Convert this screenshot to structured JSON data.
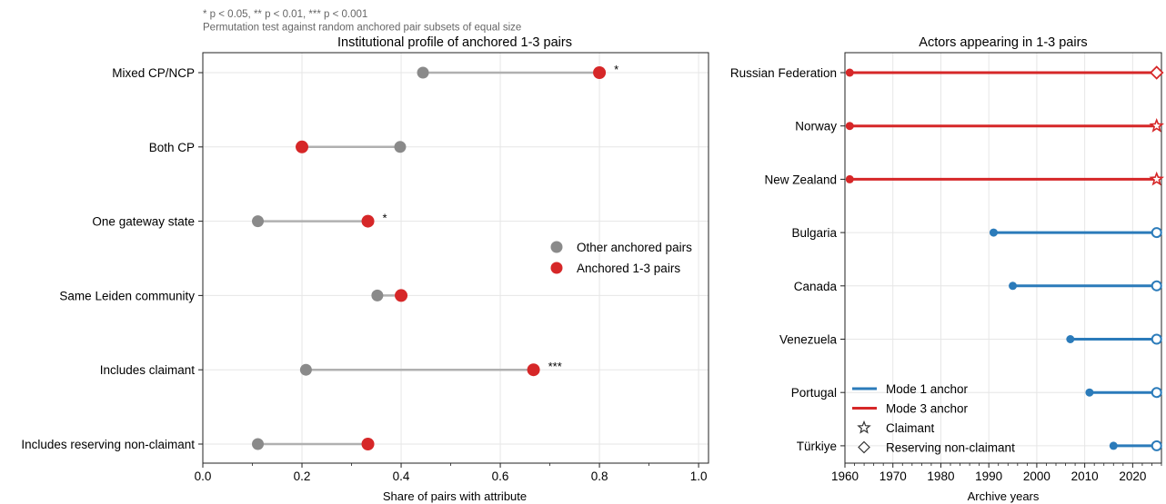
{
  "notes": {
    "line1": "* p < 0.05, ** p < 0.01, *** p < 0.001",
    "line2": "Permutation test against random anchored pair subsets of equal size"
  },
  "chart_data": [
    {
      "type": "dumbbell",
      "title": "Institutional profile of anchored 1-3 pairs",
      "xlabel": "Share of pairs with attribute",
      "ylabel": "",
      "xlim": [
        0.0,
        1.02
      ],
      "xticks": [
        0.0,
        0.2,
        0.4,
        0.6,
        0.8,
        1.0
      ],
      "xtick_labels": [
        "0.0",
        "0.2",
        "0.4",
        "0.6",
        "0.8",
        "1.0"
      ],
      "grid": true,
      "legend_position": "center-right",
      "categories": [
        "Mixed CP/NCP",
        "Both CP",
        "One gateway state",
        "Same Leiden community",
        "Includes claimant",
        "Includes reserving non-claimant"
      ],
      "series": [
        {
          "name": "Other anchored pairs",
          "color": "#8a8a8a",
          "values": [
            0.444,
            0.398,
            0.111,
            0.352,
            0.208,
            0.111
          ]
        },
        {
          "name": "Anchored 1-3 pairs",
          "color": "#d62728",
          "values": [
            0.8,
            0.2,
            0.333,
            0.4,
            0.667,
            0.333
          ]
        }
      ],
      "significance": [
        "*",
        "",
        "*",
        "",
        "***",
        ""
      ],
      "connector_color": "#b0b0b0"
    },
    {
      "type": "range",
      "title": "Actors appearing in 1-3 pairs",
      "xlabel": "Archive years",
      "ylabel": "",
      "xlim": [
        1960,
        2026
      ],
      "xticks": [
        1960,
        1970,
        1980,
        1990,
        2000,
        2010,
        2020
      ],
      "xtick_labels": [
        "1960",
        "1970",
        "1980",
        "1990",
        "2000",
        "2010",
        "2020"
      ],
      "grid": true,
      "legend_position": "lower-left",
      "actors": [
        {
          "name": "Russian Federation",
          "start": 1961,
          "end": 2025,
          "mode": "Mode 3 anchor",
          "end_marker": "diamond"
        },
        {
          "name": "Norway",
          "start": 1961,
          "end": 2025,
          "mode": "Mode 3 anchor",
          "end_marker": "star"
        },
        {
          "name": "New Zealand",
          "start": 1961,
          "end": 2025,
          "mode": "Mode 3 anchor",
          "end_marker": "star"
        },
        {
          "name": "Bulgaria",
          "start": 1991,
          "end": 2025,
          "mode": "Mode 1 anchor",
          "end_marker": "circle"
        },
        {
          "name": "Canada",
          "start": 1995,
          "end": 2025,
          "mode": "Mode 1 anchor",
          "end_marker": "circle"
        },
        {
          "name": "Venezuela",
          "start": 2007,
          "end": 2025,
          "mode": "Mode 1 anchor",
          "end_marker": "circle"
        },
        {
          "name": "Portugal",
          "start": 2011,
          "end": 2025,
          "mode": "Mode 1 anchor",
          "end_marker": "circle"
        },
        {
          "name": "Türkiye",
          "start": 2016,
          "end": 2025,
          "mode": "Mode 1 anchor",
          "end_marker": "circle"
        }
      ],
      "mode_colors": {
        "Mode 1 anchor": "#2b7bba",
        "Mode 3 anchor": "#d62728"
      },
      "legend": [
        {
          "label": "Mode 1 anchor",
          "kind": "line",
          "color": "#2b7bba"
        },
        {
          "label": "Mode 3 anchor",
          "kind": "line",
          "color": "#d62728"
        },
        {
          "label": "Claimant",
          "kind": "star"
        },
        {
          "label": "Reserving non-claimant",
          "kind": "diamond"
        }
      ]
    }
  ]
}
